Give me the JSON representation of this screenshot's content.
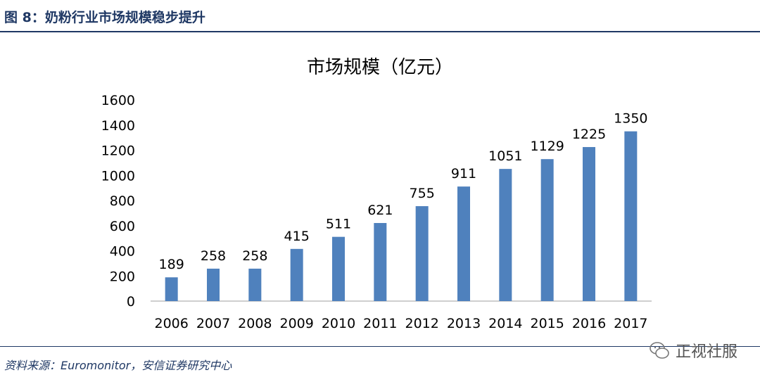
{
  "header": {
    "title": "图 8：奶粉行业市场规模稳步提升"
  },
  "chart_data": {
    "type": "bar",
    "title": "市场规模（亿元）",
    "categories": [
      "2006",
      "2007",
      "2008",
      "2009",
      "2010",
      "2011",
      "2012",
      "2013",
      "2014",
      "2015",
      "2016",
      "2017"
    ],
    "values": [
      189,
      258,
      258,
      415,
      511,
      621,
      755,
      911,
      1051,
      1129,
      1225,
      1350
    ],
    "data_labels": [
      "189",
      "258",
      "258",
      "415",
      "511",
      "621",
      "755",
      "911",
      "1051",
      "1129",
      "1225",
      "1350"
    ],
    "ylim": [
      0,
      1600
    ],
    "yticks": [
      0,
      200,
      400,
      600,
      800,
      1000,
      1200,
      1400,
      1600
    ],
    "ytick_labels": [
      "0",
      "200",
      "400",
      "600",
      "800",
      "1000",
      "1200",
      "1400",
      "1600"
    ],
    "grid": false,
    "legend": "none",
    "bar_color": "#4f81bd",
    "axis_color": "#bfbfbf",
    "text_color": "#000000"
  },
  "footer": {
    "source": "资料来源：Euromonitor，安信证券研究中心",
    "watermark": "正视社服"
  },
  "colors": {
    "header": "#1f3864"
  }
}
